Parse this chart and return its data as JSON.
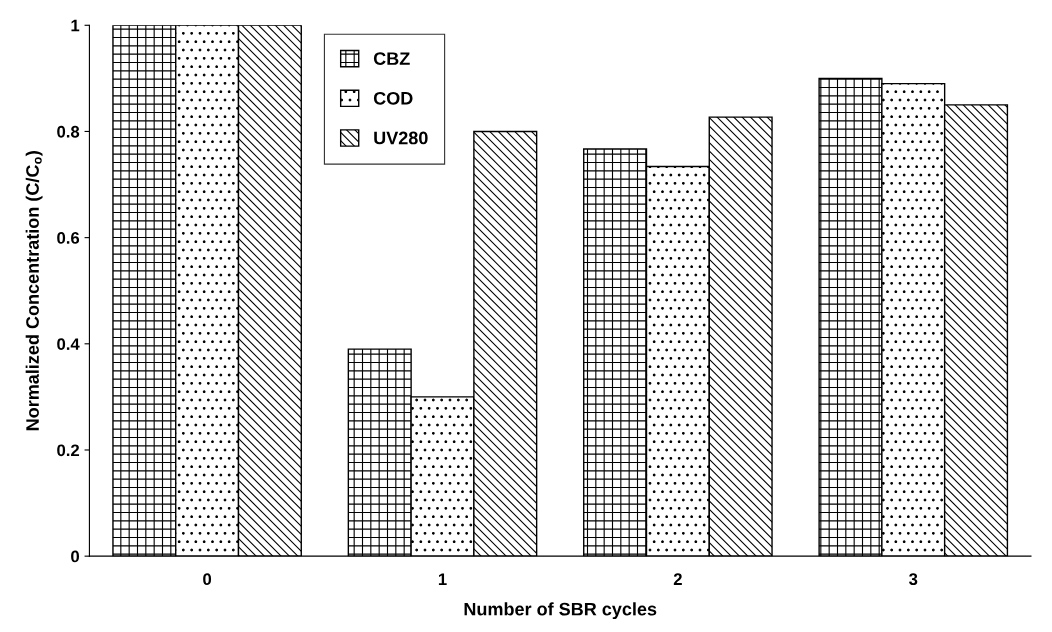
{
  "chart_data": {
    "type": "bar",
    "xlabel": "Number of SBR cycles",
    "ylabel": "Normalized Concentration (C/C$_{o}$)",
    "categories": [
      "0",
      "1",
      "2",
      "3"
    ],
    "series": [
      {
        "name": "CBZ",
        "color": "#000000",
        "values": [
          1.0,
          0.39,
          0.767,
          0.9
        ]
      },
      {
        "name": "COD",
        "color": "#000000",
        "values": [
          1.0,
          0.3,
          0.734,
          0.89
        ]
      },
      {
        "name": "UV280",
        "color": "#000000",
        "values": [
          1.0,
          0.8,
          0.827,
          0.85
        ]
      }
    ],
    "ylim": [
      0,
      1
    ],
    "yticks": [
      0,
      0.2,
      0.4,
      0.6,
      0.8,
      1
    ],
    "grid": false,
    "legend": "top left"
  }
}
